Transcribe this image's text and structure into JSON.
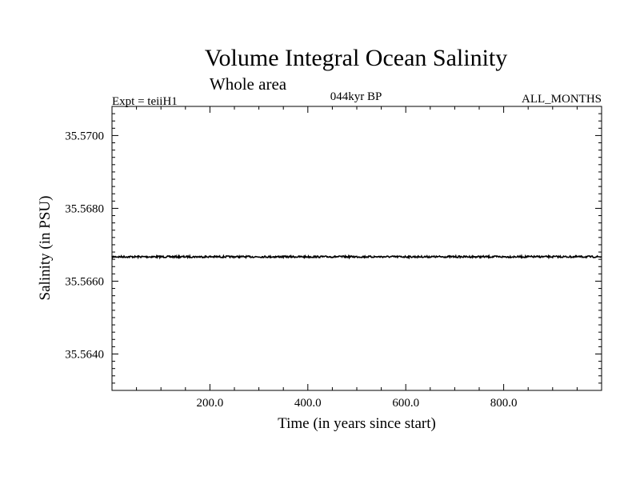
{
  "chart_data": {
    "type": "line",
    "title": "Volume Integral Ocean Salinity",
    "subtitle": "Whole area",
    "annotations": {
      "experiment": "Expt = teiiH1",
      "period": "044kyr BP",
      "months": "ALL_MONTHS"
    },
    "xlabel": "Time (in years since start)",
    "ylabel": "Salinity (in PSU)",
    "xlim": [
      0,
      1000
    ],
    "ylim": [
      35.563,
      35.5708
    ],
    "x_ticks": [
      200,
      400,
      600,
      800
    ],
    "x_tick_labels": [
      "200.0",
      "400.0",
      "600.0",
      "800.0"
    ],
    "y_ticks": [
      35.564,
      35.566,
      35.568,
      35.57
    ],
    "y_tick_labels": [
      "35.5640",
      "35.5660",
      "35.5680",
      "35.5700"
    ],
    "grid": false,
    "series": [
      {
        "x": [
          0,
          100,
          200,
          300,
          400,
          500,
          600,
          700,
          800,
          900,
          1000
        ],
        "y": [
          35.56667,
          35.56667,
          35.56667,
          35.56667,
          35.56667,
          35.56667,
          35.56667,
          35.56667,
          35.56667,
          35.56667,
          35.56667
        ]
      }
    ]
  }
}
